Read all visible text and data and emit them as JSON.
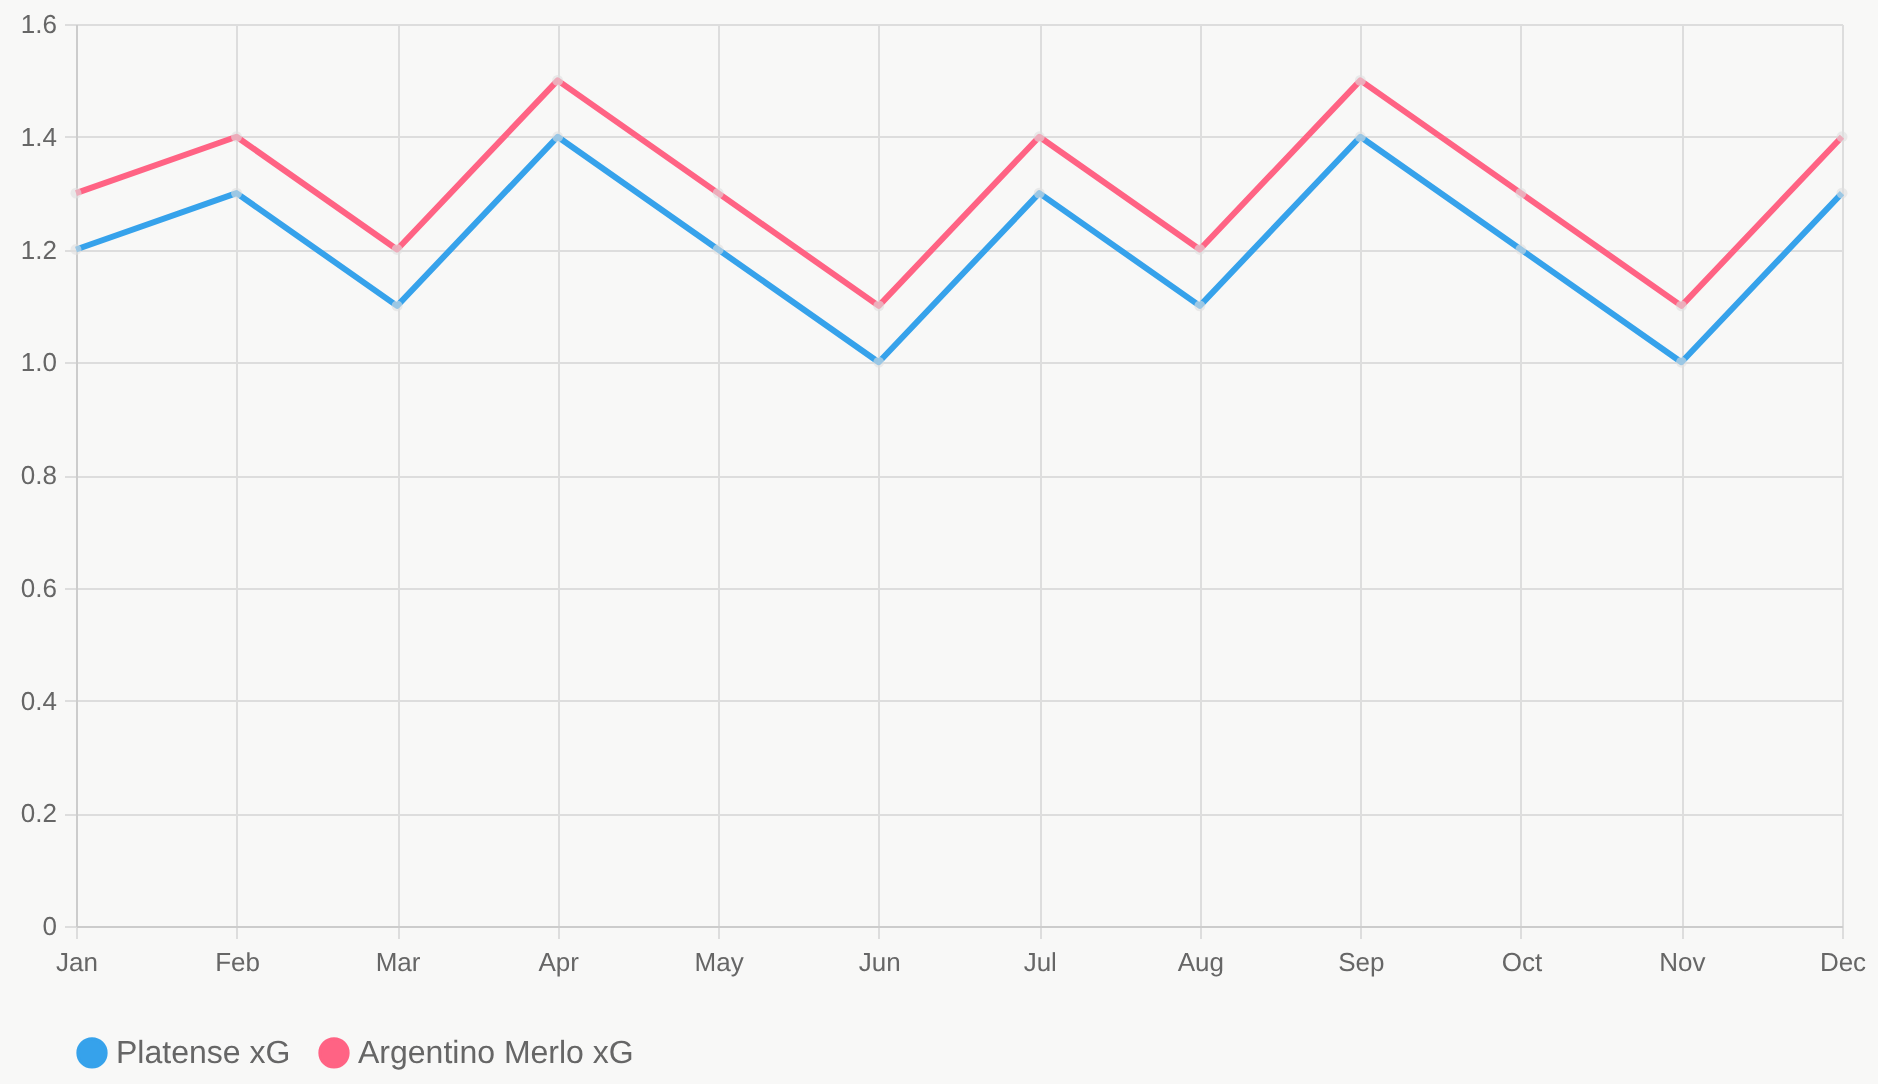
{
  "chart_data": {
    "type": "line",
    "categories": [
      "Jan",
      "Feb",
      "Mar",
      "Apr",
      "May",
      "Jun",
      "Jul",
      "Aug",
      "Sep",
      "Oct",
      "Nov",
      "Dec"
    ],
    "series": [
      {
        "name": "Platense xG",
        "color": "#36a2eb",
        "values": [
          1.2,
          1.3,
          1.1,
          1.4,
          1.2,
          1.0,
          1.3,
          1.1,
          1.4,
          1.2,
          1.0,
          1.3
        ]
      },
      {
        "name": "Argentino Merlo xG",
        "color": "#ff6384",
        "values": [
          1.3,
          1.4,
          1.2,
          1.5,
          1.3,
          1.1,
          1.4,
          1.2,
          1.5,
          1.3,
          1.1,
          1.4
        ]
      }
    ],
    "ylim": [
      0,
      1.6
    ],
    "yticks": [
      0,
      0.2,
      0.4,
      0.6,
      0.8,
      {
        "value": 1,
        "label": "1.0"
      },
      1.2,
      1.4,
      1.6
    ],
    "grid": true,
    "legend": "bottom",
    "marker": "circle"
  }
}
